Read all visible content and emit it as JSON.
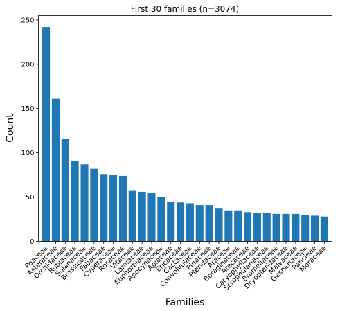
{
  "chart_data": {
    "type": "bar",
    "title": "First 30 families (n=3074)",
    "xlabel": "Families",
    "ylabel": "Count",
    "ylim": [
      0,
      255
    ],
    "yticks": [
      0,
      50,
      100,
      150,
      200,
      250
    ],
    "bar_color": "#1f77b4",
    "categories": [
      "Poaceae",
      "Asteraceae",
      "Orchidaceae",
      "Rubiaceae",
      "Solanaceae",
      "Brassicaceae",
      "Fabaceae",
      "Cyperaceae",
      "Rosaceae",
      "Vitaceae",
      "Lamiaceae",
      "Euphorbiaceae",
      "Apocynaceae",
      "Apiaceae",
      "Ericaceae",
      "Cactaceae",
      "Convolvulaceae",
      "Pinaceae",
      "Pteridaceae",
      "Araceae",
      "Boraginaceae",
      "Arecaceae",
      "Caryophyllaceae",
      "Scrophulariaceae",
      "Bromeliaceae",
      "Dryopteridaceae",
      "Malvaceae",
      "Gesneriaceae",
      "Pancieae",
      "Moraceae"
    ],
    "values": [
      242,
      161,
      116,
      91,
      87,
      82,
      76,
      75,
      74,
      57,
      56,
      55,
      50,
      45,
      44,
      43,
      41,
      41,
      37,
      35,
      35,
      33,
      32,
      32,
      31,
      31,
      31,
      30,
      29,
      28
    ]
  }
}
